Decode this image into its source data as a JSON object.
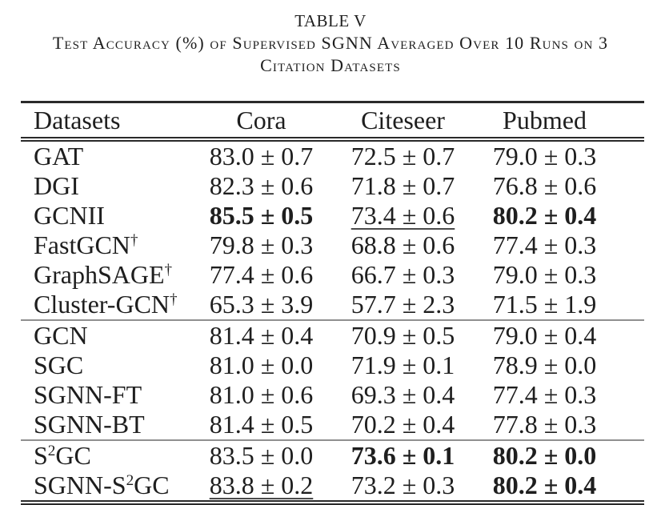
{
  "styles": {
    "background": "#ffffff",
    "text_color": "#1e1e1e",
    "rule_color": "#2a2a2a",
    "separator_color": "#8f8f8f"
  },
  "title": "TABLE V",
  "caption_lines": [
    "Test Accuracy (%) of Supervised SGNN Averaged Over 10 Runs on 3",
    "Citation Datasets"
  ],
  "table": {
    "columns": [
      "Datasets",
      "Cora",
      "Citeseer",
      "Pubmed"
    ],
    "groups": [
      {
        "rows": [
          {
            "label": [
              {
                "text": "GAT"
              }
            ],
            "cells": [
              {
                "text": "83.0 ± 0.7",
                "style": "plain"
              },
              {
                "text": "72.5 ± 0.7",
                "style": "plain"
              },
              {
                "text": "79.0 ± 0.3",
                "style": "plain"
              }
            ]
          },
          {
            "label": [
              {
                "text": "DGI"
              }
            ],
            "cells": [
              {
                "text": "82.3 ± 0.6",
                "style": "plain"
              },
              {
                "text": "71.8 ± 0.7",
                "style": "plain"
              },
              {
                "text": "76.8 ± 0.6",
                "style": "plain"
              }
            ]
          },
          {
            "label": [
              {
                "text": "GCNII"
              }
            ],
            "cells": [
              {
                "text": "85.5 ± 0.5",
                "style": "bold"
              },
              {
                "text": "73.4 ± 0.6",
                "style": "underline"
              },
              {
                "text": "80.2 ± 0.4",
                "style": "bold"
              }
            ]
          },
          {
            "label": [
              {
                "text": "FastGCN"
              },
              {
                "text": "†",
                "sup": true
              }
            ],
            "cells": [
              {
                "text": "79.8 ± 0.3",
                "style": "plain"
              },
              {
                "text": "68.8 ± 0.6",
                "style": "plain"
              },
              {
                "text": "77.4 ± 0.3",
                "style": "plain"
              }
            ]
          },
          {
            "label": [
              {
                "text": "GraphSAGE"
              },
              {
                "text": "†",
                "sup": true
              }
            ],
            "cells": [
              {
                "text": "77.4 ± 0.6",
                "style": "plain"
              },
              {
                "text": "66.7 ± 0.3",
                "style": "plain"
              },
              {
                "text": "79.0 ± 0.3",
                "style": "plain"
              }
            ]
          },
          {
            "label": [
              {
                "text": "Cluster-GCN"
              },
              {
                "text": "†",
                "sup": true
              }
            ],
            "cells": [
              {
                "text": "65.3 ± 3.9",
                "style": "plain"
              },
              {
                "text": "57.7 ± 2.3",
                "style": "plain"
              },
              {
                "text": "71.5 ± 1.9",
                "style": "plain"
              }
            ]
          }
        ]
      },
      {
        "rows": [
          {
            "label": [
              {
                "text": "GCN"
              }
            ],
            "cells": [
              {
                "text": "81.4 ± 0.4",
                "style": "plain"
              },
              {
                "text": "70.9 ± 0.5",
                "style": "plain"
              },
              {
                "text": "79.0 ± 0.4",
                "style": "plain"
              }
            ]
          },
          {
            "label": [
              {
                "text": "SGC"
              }
            ],
            "cells": [
              {
                "text": "81.0 ± 0.0",
                "style": "plain"
              },
              {
                "text": "71.9 ± 0.1",
                "style": "plain"
              },
              {
                "text": "78.9 ± 0.0",
                "style": "plain"
              }
            ]
          },
          {
            "label": [
              {
                "text": "SGNN-FT"
              }
            ],
            "cells": [
              {
                "text": "81.0 ± 0.6",
                "style": "plain"
              },
              {
                "text": "69.3 ± 0.4",
                "style": "plain"
              },
              {
                "text": "77.4 ± 0.3",
                "style": "plain"
              }
            ]
          },
          {
            "label": [
              {
                "text": "SGNN-BT"
              }
            ],
            "cells": [
              {
                "text": "81.4 ± 0.5",
                "style": "plain"
              },
              {
                "text": "70.2 ± 0.4",
                "style": "plain"
              },
              {
                "text": "77.8 ± 0.3",
                "style": "plain"
              }
            ]
          }
        ]
      },
      {
        "rows": [
          {
            "label": [
              {
                "text": "S"
              },
              {
                "text": "2",
                "sup": true
              },
              {
                "text": "GC"
              }
            ],
            "cells": [
              {
                "text": "83.5 ± 0.0",
                "style": "plain"
              },
              {
                "text": "73.6 ± 0.1",
                "style": "bold"
              },
              {
                "text": "80.2 ± 0.0",
                "style": "bold"
              }
            ]
          },
          {
            "label": [
              {
                "text": "SGNN-S"
              },
              {
                "text": "2",
                "sup": true
              },
              {
                "text": "GC"
              }
            ],
            "cells": [
              {
                "text": "83.8 ± 0.2",
                "style": "underline"
              },
              {
                "text": "73.2 ± 0.3",
                "style": "plain"
              },
              {
                "text": "80.2 ± 0.4",
                "style": "bold"
              }
            ]
          }
        ]
      }
    ]
  }
}
